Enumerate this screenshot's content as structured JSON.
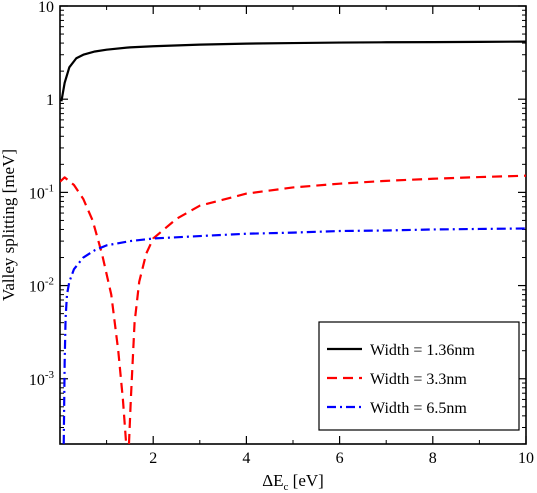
{
  "chart_data": {
    "type": "line",
    "xlabel": {
      "main": "ΔE",
      "sub": "c",
      "unit": " [eV]"
    },
    "ylabel": "Valley splitting [meV]",
    "xlim": [
      0,
      10
    ],
    "ylim": [
      0.0002,
      10
    ],
    "y_scale": "log",
    "grid": false,
    "legend_position": "bottom-right",
    "x_ticks": [
      {
        "value": 2,
        "label": "2"
      },
      {
        "value": 4,
        "label": "4"
      },
      {
        "value": 6,
        "label": "6"
      },
      {
        "value": 8,
        "label": "8"
      },
      {
        "value": 10,
        "label": "10"
      }
    ],
    "y_ticks": [
      {
        "value": 10,
        "base": "10",
        "exp": ""
      },
      {
        "value": 1,
        "base": "1",
        "exp": ""
      },
      {
        "value": 0.1,
        "base": "10",
        "exp": "-1"
      },
      {
        "value": 0.01,
        "base": "10",
        "exp": "-2"
      },
      {
        "value": 0.001,
        "base": "10",
        "exp": "-3"
      }
    ],
    "series": [
      {
        "name": "Width = 1.36nm",
        "color": "#000000",
        "dash": "solid",
        "x": [
          0.03,
          0.1,
          0.2,
          0.35,
          0.5,
          0.75,
          1.0,
          1.5,
          2.0,
          3.0,
          4.0,
          5.0,
          6.0,
          7.0,
          8.0,
          9.0,
          10.0
        ],
        "y": [
          0.95,
          1.5,
          2.2,
          2.75,
          3.0,
          3.25,
          3.4,
          3.6,
          3.7,
          3.85,
          3.95,
          4.0,
          4.05,
          4.08,
          4.1,
          4.12,
          4.15
        ]
      },
      {
        "name": "Width = 3.3nm",
        "color": "#ff0000",
        "dash": "dashed",
        "x": [
          0.0,
          0.1,
          0.3,
          0.5,
          0.7,
          0.9,
          1.1,
          1.25,
          1.35,
          1.42,
          1.45,
          1.48,
          1.52,
          1.6,
          1.7,
          1.85,
          2.0,
          2.5,
          3.0,
          4.0,
          5.0,
          6.0,
          7.0,
          8.0,
          9.0,
          10.0
        ],
        "y": [
          0.13,
          0.145,
          0.12,
          0.085,
          0.05,
          0.022,
          0.008,
          0.002,
          0.0006,
          0.0002,
          0.0002,
          0.0002,
          0.0006,
          0.004,
          0.011,
          0.022,
          0.032,
          0.052,
          0.072,
          0.097,
          0.113,
          0.124,
          0.133,
          0.14,
          0.146,
          0.151
        ]
      },
      {
        "name": "Width = 6.5nm",
        "color": "#0000ff",
        "dash": "dashdot",
        "x": [
          0.08,
          0.1,
          0.12,
          0.15,
          0.2,
          0.3,
          0.5,
          0.75,
          1.0,
          1.5,
          2.0,
          3.0,
          4.0,
          5.0,
          6.0,
          7.0,
          8.0,
          9.0,
          10.0
        ],
        "y": [
          0.0002,
          0.0015,
          0.0045,
          0.008,
          0.011,
          0.015,
          0.02,
          0.024,
          0.027,
          0.03,
          0.032,
          0.034,
          0.036,
          0.037,
          0.0385,
          0.039,
          0.04,
          0.0405,
          0.041
        ]
      }
    ]
  }
}
